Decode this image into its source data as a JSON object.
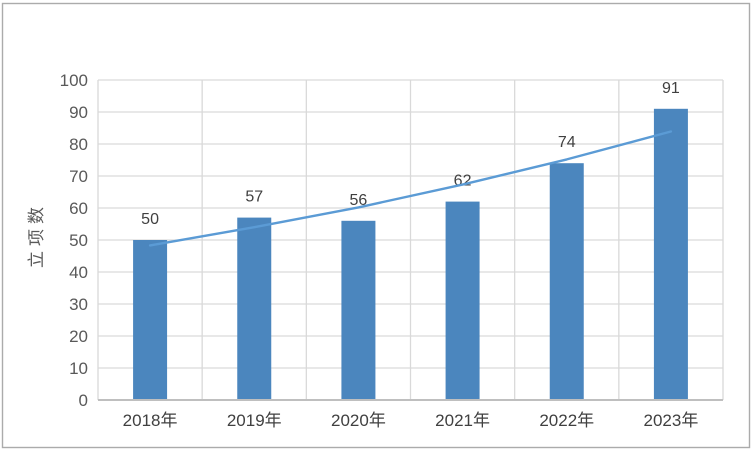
{
  "chart_data": {
    "type": "bar",
    "title": "",
    "categories": [
      "2018年",
      "2019年",
      "2020年",
      "2021年",
      "2022年",
      "2023年"
    ],
    "series": [
      {
        "name": "立项数",
        "type": "bar",
        "values": [
          50,
          57,
          56,
          62,
          74,
          91
        ]
      },
      {
        "name": "趋势线",
        "type": "line",
        "values": [
          48.3,
          54.0,
          60.2,
          67.3,
          75.2,
          83.9
        ]
      }
    ],
    "data_labels": [
      "50",
      "57",
      "56",
      "62",
      "74",
      "91"
    ],
    "xlabel": "",
    "ylabel": "立项数",
    "ylim": [
      0,
      100
    ],
    "ytick_step": 10,
    "yticks": [
      "0",
      "10",
      "20",
      "30",
      "40",
      "50",
      "60",
      "70",
      "80",
      "90",
      "100"
    ],
    "grid": true,
    "legend": "none",
    "colors": {
      "bar_fill": "#4B86BE",
      "trend_line": "#5B9BD5",
      "gridline": "#D9D9D9",
      "axis_line": "#BFBFBF",
      "tick_text": "#595959",
      "data_label_text": "#404040",
      "category_text": "#404040",
      "axis_title_text": "#595959",
      "frame_border": "#ABABAB",
      "background": "#FFFFFF"
    }
  }
}
